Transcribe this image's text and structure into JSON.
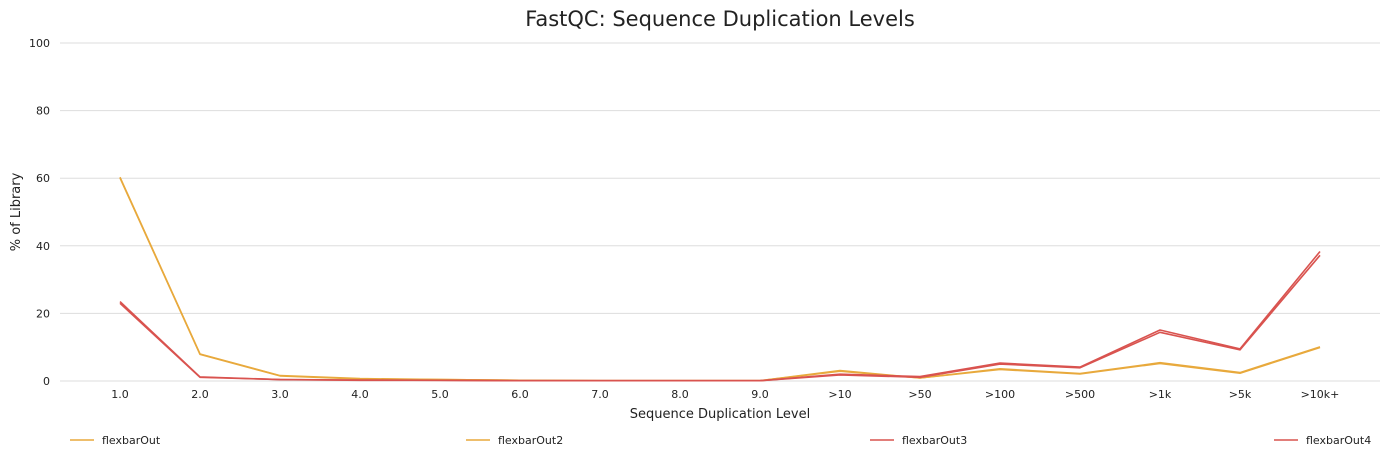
{
  "chart_data": {
    "type": "line",
    "title": "FastQC: Sequence Duplication Levels",
    "xlabel": "Sequence Duplication Level",
    "ylabel": "% of Library",
    "ylim": [
      0,
      100
    ],
    "yticks": [
      0,
      20,
      40,
      60,
      80,
      100
    ],
    "grid": true,
    "legend_position": "bottom",
    "categories": [
      "1.0",
      "2.0",
      "3.0",
      "4.0",
      "5.0",
      "6.0",
      "7.0",
      "8.0",
      "9.0",
      ">10",
      ">50",
      ">100",
      ">500",
      ">1k",
      ">5k",
      ">10k+"
    ],
    "series": [
      {
        "name": "flexbarOut",
        "color": "#e8a93c",
        "values": [
          60.3,
          8.0,
          1.6,
          0.7,
          0.4,
          0.2,
          0.1,
          0.1,
          0.1,
          3.1,
          0.9,
          3.6,
          2.2,
          5.4,
          2.5,
          10.1
        ]
      },
      {
        "name": "flexbarOut2",
        "color": "#e8a93c",
        "values": [
          60.1,
          7.9,
          1.5,
          0.6,
          0.4,
          0.2,
          0.1,
          0.1,
          0.1,
          2.9,
          0.9,
          3.4,
          2.1,
          5.2,
          2.3,
          9.9
        ]
      },
      {
        "name": "flexbarOut3",
        "color": "#d9534f",
        "values": [
          23.5,
          1.2,
          0.4,
          0.3,
          0.2,
          0.1,
          0.1,
          0.1,
          0.1,
          2.0,
          1.3,
          5.3,
          4.1,
          15.1,
          9.5,
          38.3
        ]
      },
      {
        "name": "flexbarOut4",
        "color": "#d9534f",
        "values": [
          23.0,
          1.1,
          0.4,
          0.2,
          0.2,
          0.1,
          0.1,
          0.1,
          0.1,
          1.8,
          1.1,
          5.0,
          3.9,
          14.4,
          9.2,
          37.2
        ]
      }
    ]
  }
}
